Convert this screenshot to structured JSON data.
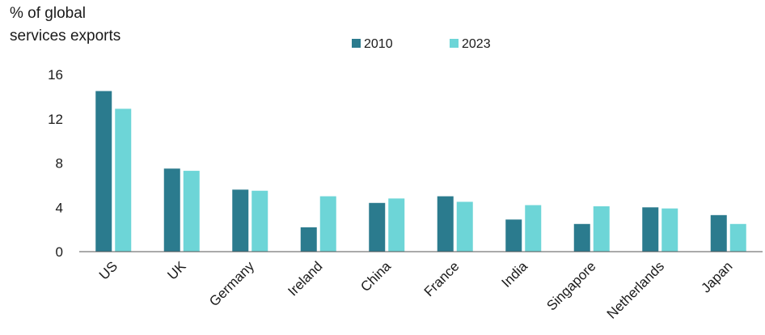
{
  "chart_data": {
    "type": "bar",
    "ylabel": [
      "% of global",
      "services exports"
    ],
    "categories": [
      "US",
      "UK",
      "Germany",
      "Ireland",
      "China",
      "France",
      "India",
      "Singapore",
      "Netherlands",
      "Japan"
    ],
    "series": [
      {
        "name": "2010",
        "color": "#2b7b8e",
        "values": [
          14.5,
          7.5,
          5.6,
          2.2,
          4.4,
          5.0,
          2.9,
          2.5,
          4.0,
          3.3
        ]
      },
      {
        "name": "2023",
        "color": "#6dd5d7",
        "values": [
          12.9,
          7.3,
          5.5,
          5.0,
          4.8,
          4.5,
          4.2,
          4.1,
          3.9,
          2.5
        ]
      }
    ],
    "yticks": [
      0,
      4,
      8,
      12,
      16
    ],
    "ylim": [
      0,
      16
    ],
    "legend": "top-center",
    "grid": false
  }
}
